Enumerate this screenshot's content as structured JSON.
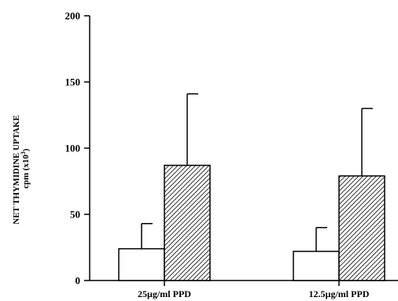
{
  "chart_data": {
    "type": "bar",
    "categories": [
      "25µg/ml PPD",
      "12.5µg/ml PPD"
    ],
    "series": [
      {
        "values": [
          24,
          22
        ],
        "errors": [
          19,
          18
        ],
        "fill": "open",
        "color": "#ffffff"
      },
      {
        "values": [
          87,
          79
        ],
        "errors": [
          54,
          51
        ],
        "fill": "hatched",
        "color": "#000000"
      }
    ],
    "ylabel_line1": "NET THYMIDINE UPTAKE",
    "ylabel_line2": "cpm (x10",
    "ylabel_superscript": "3",
    "ylabel_close": ")",
    "ylim": [
      0,
      200
    ],
    "yticks": [
      0,
      50,
      100,
      150,
      200
    ],
    "error_bars": "upper",
    "grid": false,
    "legend": "none"
  }
}
